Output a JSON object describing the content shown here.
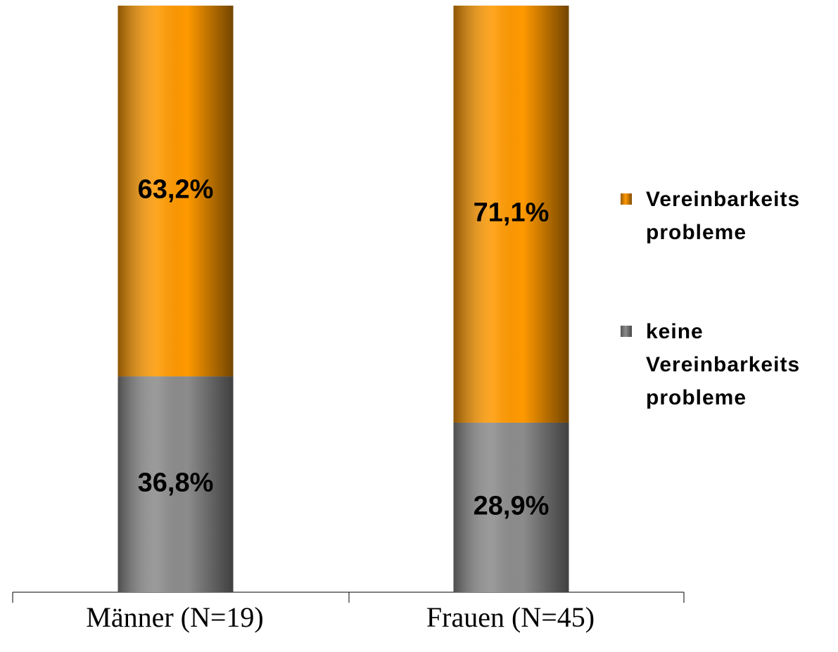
{
  "chart_data": {
    "type": "stacked_bar",
    "categories": [
      "Männer (N=19)",
      "Frauen (N=45)"
    ],
    "series": [
      {
        "name": "keine Vereinbarkeits probleme",
        "color": "#8c8c8c",
        "values": [
          36.8,
          28.9
        ],
        "value_labels": [
          "36,8%",
          "28,9%"
        ]
      },
      {
        "name": "Vereinbarkeits probleme",
        "color": "#ff9900",
        "values": [
          63.2,
          71.1
        ],
        "value_labels": [
          "63,2%",
          "71,1%"
        ]
      }
    ],
    "ylim": [
      0,
      100
    ],
    "legend": "right"
  }
}
